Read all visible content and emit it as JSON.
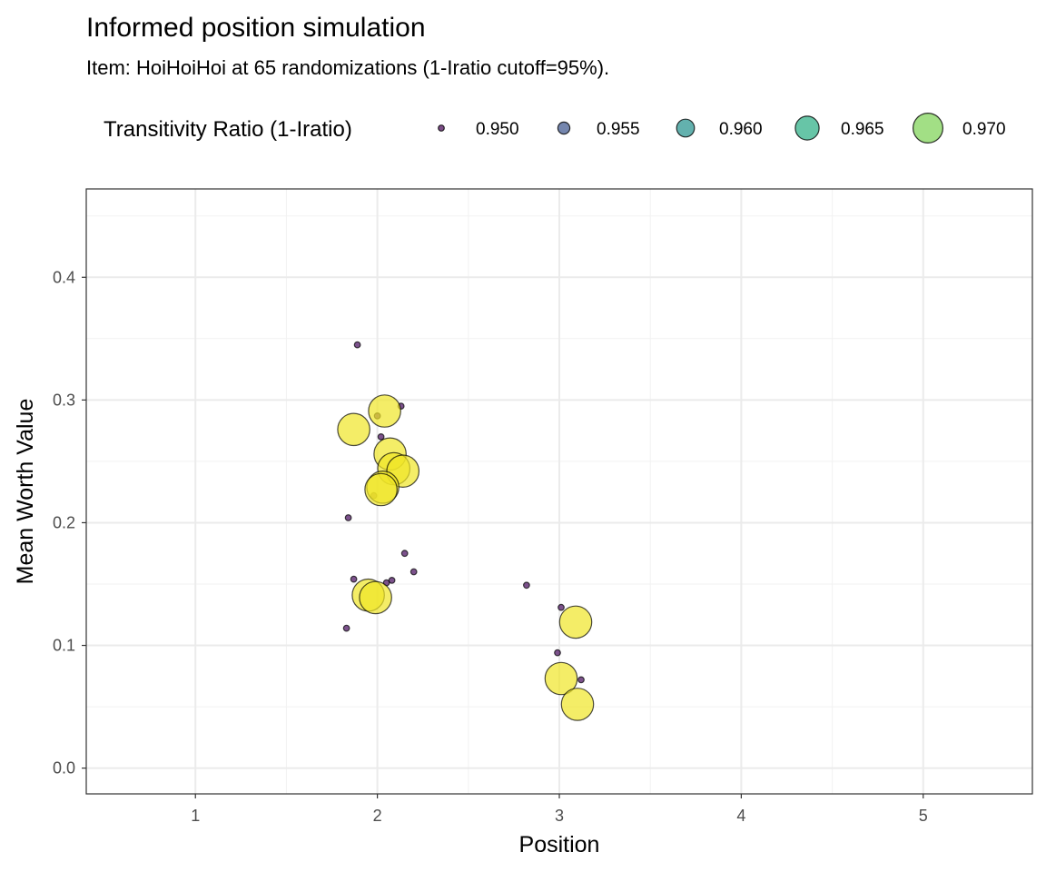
{
  "chart_data": {
    "type": "scatter",
    "title": "Informed position simulation",
    "subtitle": "Item: HoiHoiHoi at 65 randomizations (1-Iratio cutoff=95%).",
    "xlabel": "Position",
    "ylabel": "Mean Worth Value",
    "xlim": [
      0.4,
      5.6
    ],
    "ylim": [
      -0.021,
      0.472
    ],
    "x_ticks": [
      1,
      2,
      3,
      4,
      5
    ],
    "x_tick_labels": [
      "1",
      "2",
      "3",
      "4",
      "5"
    ],
    "y_ticks": [
      0.0,
      0.1,
      0.2,
      0.3,
      0.4
    ],
    "y_tick_labels": [
      "0.0",
      "0.1",
      "0.2",
      "0.3",
      "0.4"
    ],
    "grid": true,
    "legend": {
      "title": "Transitivity Ratio (1-Iratio)",
      "position": "top",
      "entries": [
        {
          "value": 0.95,
          "label": "0.950",
          "color": "#440154"
        },
        {
          "value": 0.955,
          "label": "0.955",
          "color": "#3b528b"
        },
        {
          "value": 0.96,
          "label": "0.960",
          "color": "#21908c"
        },
        {
          "value": 0.965,
          "label": "0.965",
          "color": "#27ad81"
        },
        {
          "value": 0.97,
          "label": "0.970",
          "color": "#7ad151"
        }
      ]
    },
    "size_range": [
      0.9495,
      0.9725
    ],
    "color_scale": "viridis",
    "points": [
      {
        "x": 1.89,
        "y": 0.345,
        "ratio": 0.95
      },
      {
        "x": 2.13,
        "y": 0.295,
        "ratio": 0.95
      },
      {
        "x": 2.0,
        "y": 0.287,
        "ratio": 0.95
      },
      {
        "x": 2.02,
        "y": 0.27,
        "ratio": 0.95
      },
      {
        "x": 1.84,
        "y": 0.204,
        "ratio": 0.95
      },
      {
        "x": 1.98,
        "y": 0.222,
        "ratio": 0.95
      },
      {
        "x": 2.15,
        "y": 0.175,
        "ratio": 0.95
      },
      {
        "x": 2.2,
        "y": 0.16,
        "ratio": 0.95
      },
      {
        "x": 1.87,
        "y": 0.154,
        "ratio": 0.95
      },
      {
        "x": 2.08,
        "y": 0.153,
        "ratio": 0.95
      },
      {
        "x": 2.05,
        "y": 0.151,
        "ratio": 0.95
      },
      {
        "x": 1.83,
        "y": 0.114,
        "ratio": 0.95
      },
      {
        "x": 2.82,
        "y": 0.149,
        "ratio": 0.95
      },
      {
        "x": 3.01,
        "y": 0.131,
        "ratio": 0.95
      },
      {
        "x": 2.99,
        "y": 0.094,
        "ratio": 0.95
      },
      {
        "x": 3.12,
        "y": 0.072,
        "ratio": 0.95
      },
      {
        "x": 2.04,
        "y": 0.291,
        "ratio": 0.972
      },
      {
        "x": 1.87,
        "y": 0.276,
        "ratio": 0.972
      },
      {
        "x": 2.07,
        "y": 0.256,
        "ratio": 0.972
      },
      {
        "x": 2.09,
        "y": 0.244,
        "ratio": 0.972
      },
      {
        "x": 2.14,
        "y": 0.242,
        "ratio": 0.972
      },
      {
        "x": 2.03,
        "y": 0.229,
        "ratio": 0.972
      },
      {
        "x": 2.02,
        "y": 0.227,
        "ratio": 0.972
      },
      {
        "x": 1.95,
        "y": 0.141,
        "ratio": 0.972
      },
      {
        "x": 1.99,
        "y": 0.139,
        "ratio": 0.972
      },
      {
        "x": 3.09,
        "y": 0.119,
        "ratio": 0.972
      },
      {
        "x": 3.01,
        "y": 0.073,
        "ratio": 0.972
      },
      {
        "x": 3.1,
        "y": 0.052,
        "ratio": 0.972
      }
    ]
  }
}
